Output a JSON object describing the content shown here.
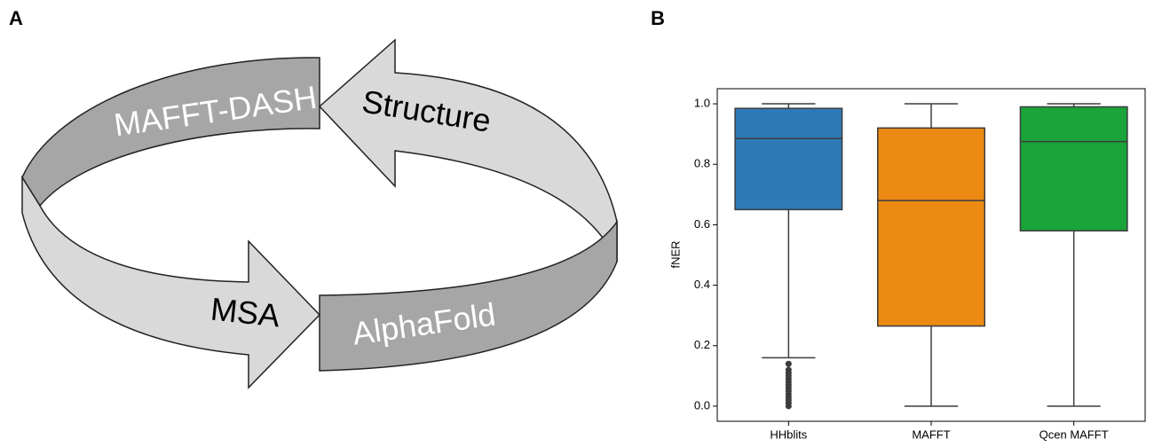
{
  "panels": {
    "a": "A",
    "b": "B"
  },
  "diagram": {
    "labels": [
      "MAFFT-DASH",
      "Structure",
      "MSA",
      "AlphaFold"
    ]
  },
  "chart_data": {
    "type": "box",
    "y_label": "fNER",
    "boxes": [
      {
        "name": "HHblits",
        "color": "#2e7ab6",
        "whislo": 0.16,
        "q1": 0.65,
        "median": 0.885,
        "q3": 0.985,
        "whishi": 1.0,
        "fliers": [
          0,
          0.01,
          0.02,
          0.03,
          0.04,
          0.05,
          0.06,
          0.07,
          0.08,
          0.09,
          0.1,
          0.11,
          0.12,
          0.14
        ]
      },
      {
        "name": "MAFFT",
        "color": "#ec8a14",
        "whislo": 0,
        "q1": 0.265,
        "median": 0.68,
        "q3": 0.92,
        "whishi": 1.0,
        "fliers": []
      },
      {
        "name": "Qcen MAFFT",
        "color": "#1aa43a",
        "whislo": 0,
        "q1": 0.58,
        "median": 0.875,
        "q3": 0.99,
        "whishi": 1.0,
        "fliers": []
      }
    ],
    "ylim": [
      -0.05,
      1.05
    ],
    "yticks": [
      {
        "value": 0,
        "label": "0.0"
      },
      0.2,
      0.4,
      0.6,
      0.8,
      {
        "value": 1,
        "label": "1.0"
      }
    ]
  }
}
